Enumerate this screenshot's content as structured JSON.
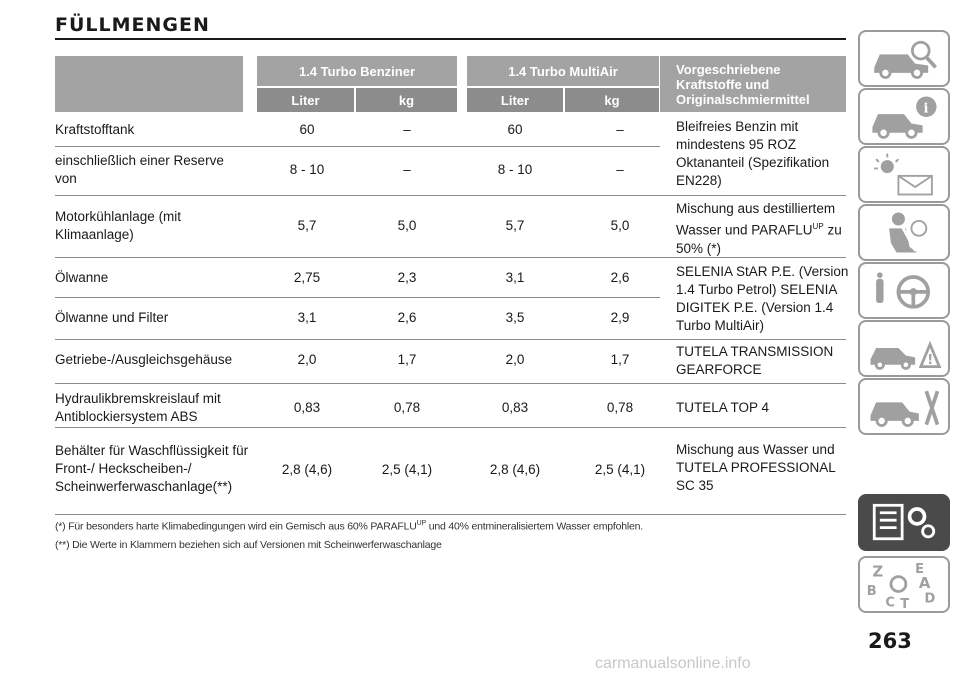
{
  "title": "FÜLLMENGEN",
  "header": {
    "group1": "1.4 Turbo Benziner",
    "group2": "1.4 Turbo MultiAir",
    "spec": "Vorgeschriebene Kraftstoffe und Originalschmiermittel",
    "sub": [
      "Liter",
      "kg",
      "Liter",
      "kg"
    ]
  },
  "rows": [
    {
      "label": "Kraftstofftank",
      "v": [
        "60",
        "–",
        "60",
        "–"
      ]
    },
    {
      "label": "einschließlich einer Reserve von",
      "v": [
        "8 - 10",
        "–",
        "8 - 10",
        "–"
      ]
    },
    {
      "label": "Motorkühlanlage (mit Klimaanlage)",
      "v": [
        "5,7",
        "5,0",
        "5,7",
        "5,0"
      ]
    },
    {
      "label": "Ölwanne",
      "v": [
        "2,75",
        "2,3",
        "3,1",
        "2,6"
      ]
    },
    {
      "label": "Ölwanne und Filter",
      "v": [
        "3,1",
        "2,6",
        "3,5",
        "2,9"
      ]
    },
    {
      "label": "Getriebe-/Ausgleichsgehäuse",
      "v": [
        "2,0",
        "1,7",
        "2,0",
        "1,7"
      ]
    },
    {
      "label": "Hydraulikbremskreislauf mit Antiblockiersystem ABS",
      "v": [
        "0,83",
        "0,78",
        "0,83",
        "0,78"
      ]
    },
    {
      "label": "Behälter für Waschflüssigkeit für Front-/ Heckscheiben-/ Scheinwerferwaschanlage(**)",
      "v": [
        "2,8 (4,6)",
        "2,5 (4,1)",
        "2,8 (4,6)",
        "2,5 (4,1)"
      ]
    }
  ],
  "specs": {
    "fuel": "Bleifreies Benzin mit mindestens 95 ROZ Oktananteil (Spezifikation EN228)",
    "coolant_pre": "Mischung aus destilliertem Wasser und PARAFLU",
    "coolant_sup": "UP",
    "coolant_post": "zu 50% (*)",
    "oil": "SELENIA StAR P.E. (Version 1.4 Turbo Petrol) SELENIA DIGITEK P.E. (Version 1.4 Turbo MultiAir)",
    "gear": "TUTELA TRANSMISSION GEARFORCE",
    "brake": "TUTELA TOP 4",
    "washer": "Mischung aus Wasser und TUTELA PROFESSIONAL SC 35"
  },
  "footnotes": {
    "f1_pre": "(*) Für besonders harte Klimabedingungen wird ein Gemisch aus 60% PARAFLU",
    "f1_sup": "UP",
    "f1_post": "und 40% entmineralisiertem Wasser empfohlen.",
    "f2": "(**) Die Werte in Klammern beziehen sich auf Versionen mit Scheinwerferwaschanlage"
  },
  "side_tabs": [
    "car-search-icon",
    "car-info-icon",
    "warning-lights-icon",
    "airbag-safety-icon",
    "steering-wheel-icon",
    "breakdown-icon",
    "car-tools-icon",
    "technical-data-icon",
    "index-letters-icon"
  ],
  "index_letters": "Z E A B C T D",
  "page_number": "263",
  "watermark": "carmanualsonline.info",
  "colors": {
    "header_gray": "#a3a3a3",
    "subheader_gray": "#8c8c8c",
    "active_tab": "#4a4a4a"
  }
}
